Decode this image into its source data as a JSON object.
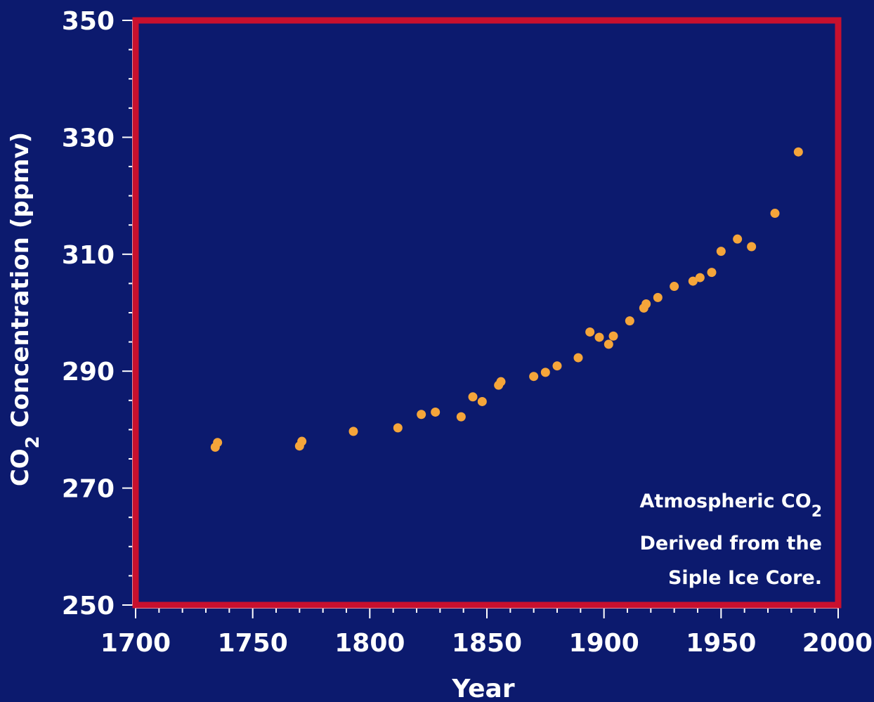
{
  "chart_data": {
    "type": "scatter",
    "title": "",
    "xlabel": "Year",
    "ylabel_main": "CO",
    "ylabel_sub": "2",
    "ylabel_rest": " Concentration (ppmv)",
    "xlim": [
      1700,
      2000
    ],
    "ylim": [
      250,
      350
    ],
    "x_ticks": [
      "1700",
      "1750",
      "1800",
      "1850",
      "1900",
      "1950",
      "2000"
    ],
    "y_ticks": [
      "250",
      "270",
      "290",
      "310",
      "330",
      "350"
    ],
    "grid": false,
    "colors": {
      "background": "#0c1a6e",
      "frame": "#c8102e",
      "points": "#f5a53a",
      "text": "#ffffff"
    },
    "annotation": {
      "line1_main": "Atmospheric CO",
      "line1_sub": "2",
      "line2": "Derived from the",
      "line3": "Siple Ice Core."
    },
    "series": [
      {
        "x": [
          1734,
          1735,
          1770,
          1771,
          1793,
          1812,
          1822,
          1828,
          1839,
          1844,
          1848,
          1855,
          1856,
          1870,
          1875,
          1880,
          1889,
          1894,
          1898,
          1902,
          1904,
          1911,
          1917,
          1918,
          1923,
          1930,
          1938,
          1941,
          1946,
          1950,
          1957,
          1963,
          1973,
          1983
        ],
        "y": [
          277.0,
          277.8,
          277.2,
          278.0,
          279.7,
          280.3,
          282.6,
          283.0,
          282.2,
          285.6,
          284.8,
          287.6,
          288.2,
          289.1,
          289.8,
          290.9,
          292.3,
          296.7,
          295.8,
          294.6,
          296.0,
          298.6,
          300.8,
          301.5,
          302.6,
          304.5,
          305.4,
          306.0,
          306.9,
          310.5,
          312.6,
          311.3,
          317.0,
          327.5
        ]
      }
    ]
  }
}
